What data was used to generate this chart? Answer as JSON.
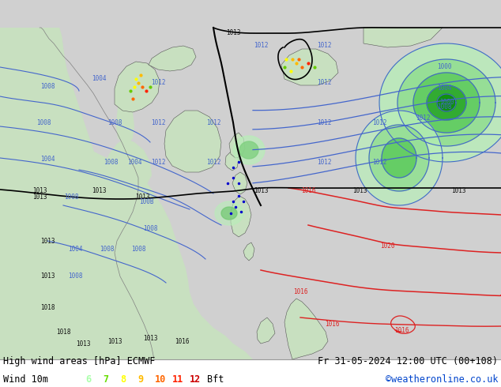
{
  "title_left": "High wind areas [hPa] ECMWF",
  "title_right": "Fr 31-05-2024 12:00 UTC (00+108)",
  "subtitle_left": "Wind 10m",
  "subtitle_right": "©weatheronline.co.uk",
  "bft_labels": [
    "6",
    "7",
    "8",
    "9",
    "10",
    "11",
    "12",
    "Bft"
  ],
  "bft_colors": [
    "#aaffaa",
    "#66dd00",
    "#ffff00",
    "#ffbb00",
    "#ff6600",
    "#ff2200",
    "#cc0000",
    "#000000"
  ],
  "fig_width": 6.34,
  "fig_height": 4.9,
  "bottom_bar_height": 35,
  "ocean_color": "#d0d0d0",
  "land_color": "#c8e0c0",
  "land_color2": "#b8d4a8",
  "wind_light": "#c8f0c8",
  "wind_mid": "#90e090",
  "wind_dark": "#40c040",
  "isobar_blue": "#4466cc",
  "isobar_black": "#000000",
  "isobar_red": "#dd2222",
  "font_size_title": 8.5,
  "font_size_legend": 8.5,
  "font_size_label": 5.5,
  "font_family": "monospace"
}
